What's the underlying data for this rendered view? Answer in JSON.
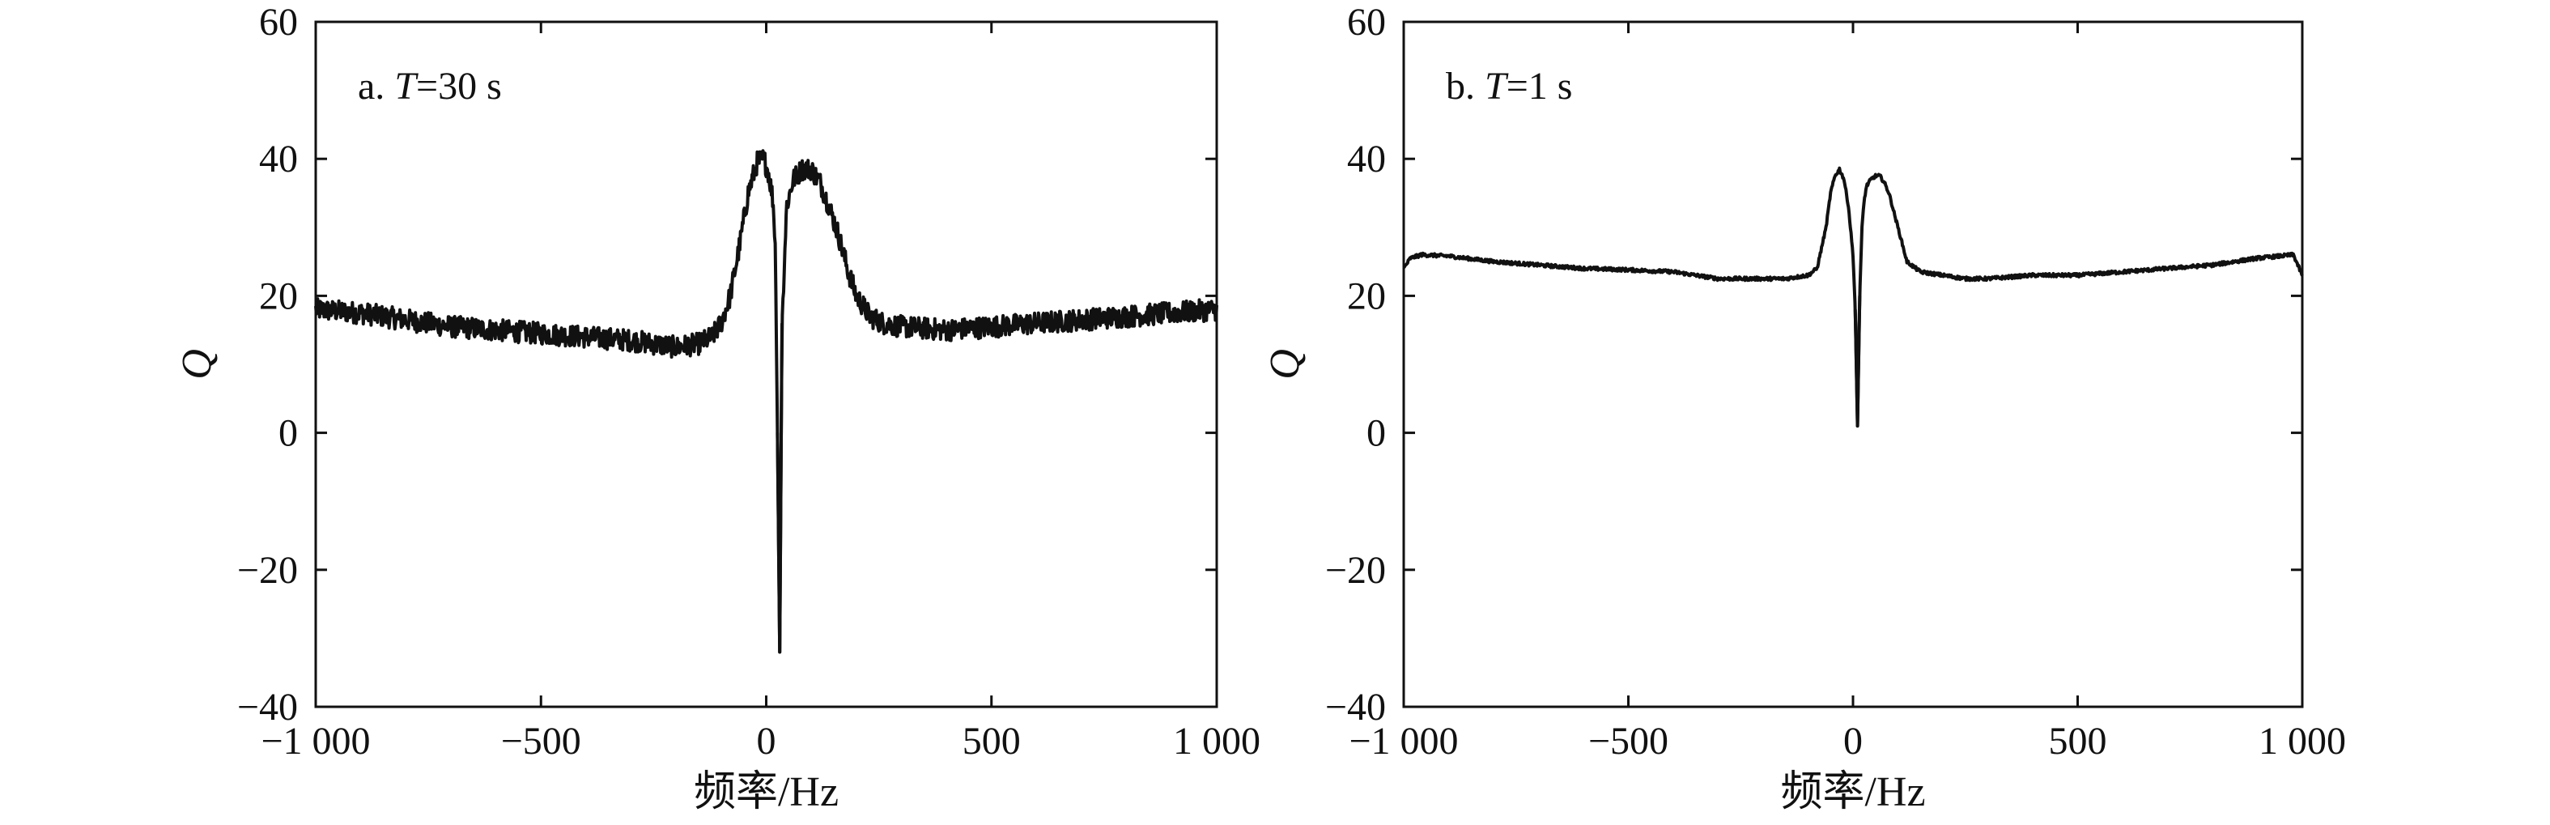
{
  "chart_data": [
    {
      "type": "line",
      "annotation": {
        "prefix": "a. ",
        "var": "T",
        "suffix": "=30 s"
      },
      "xlabel": "频率/Hz",
      "ylabel": "Q",
      "xlim": [
        -1000,
        1000
      ],
      "ylim": [
        -40,
        60
      ],
      "xticks": [
        -1000,
        -500,
        0,
        500,
        1000
      ],
      "xtick_labels": [
        "−1 000",
        "−500",
        "0",
        "500",
        "1 000"
      ],
      "yticks": [
        -40,
        -20,
        0,
        20,
        40,
        60
      ],
      "ytick_labels": [
        "−40",
        "−20",
        "0",
        "20",
        "40",
        "60"
      ],
      "grid": false,
      "noise": 1.6,
      "series": [
        {
          "x": [
            -1000,
            -900,
            -800,
            -700,
            -600,
            -500,
            -400,
            -300,
            -250,
            -200,
            -150,
            -120,
            -100,
            -80,
            -60,
            -40,
            -20,
            -5,
            5,
            15,
            20,
            25,
            30,
            35,
            45,
            60,
            80,
            100,
            120,
            140,
            160,
            180,
            200,
            230,
            260,
            300,
            400,
            500,
            600,
            700,
            800,
            900,
            1000
          ],
          "y": [
            18,
            17.5,
            16.5,
            15.5,
            15,
            14.5,
            14,
            13.5,
            13,
            12.5,
            13,
            14,
            16,
            20,
            27,
            35,
            39.5,
            40,
            38,
            34,
            28,
            0,
            -32,
            16,
            33,
            37,
            38.5,
            38.5,
            36.5,
            33,
            29,
            24,
            20,
            17,
            16,
            15.5,
            15,
            15.5,
            16,
            16.5,
            17,
            17.5,
            18
          ]
        }
      ]
    },
    {
      "type": "line",
      "annotation": {
        "prefix": "b. ",
        "var": "T",
        "suffix": "=1 s"
      },
      "xlabel": "频率/Hz",
      "ylabel": "Q",
      "xlim": [
        -1000,
        1000
      ],
      "ylim": [
        -40,
        60
      ],
      "xticks": [
        -1000,
        -500,
        0,
        500,
        1000
      ],
      "xtick_labels": [
        "−1 000",
        "−500",
        "0",
        "500",
        "1 000"
      ],
      "yticks": [
        -40,
        -20,
        0,
        20,
        40,
        60
      ],
      "ytick_labels": [
        "−40",
        "−20",
        "0",
        "20",
        "40",
        "60"
      ],
      "grid": false,
      "noise": 0.25,
      "series": [
        {
          "x": [
            -1000,
            -985,
            -960,
            -900,
            -800,
            -700,
            -600,
            -500,
            -400,
            -300,
            -250,
            -200,
            -150,
            -100,
            -80,
            -60,
            -50,
            -40,
            -30,
            -20,
            -10,
            0,
            5,
            10,
            15,
            20,
            25,
            30,
            40,
            50,
            60,
            70,
            80,
            100,
            120,
            150,
            200,
            250,
            300,
            400,
            500,
            600,
            700,
            800,
            900,
            950,
            980,
            1000
          ],
          "y": [
            24,
            25.5,
            26,
            25.8,
            25,
            24.5,
            24,
            23.8,
            23.5,
            22.5,
            22.5,
            22.5,
            22.5,
            23,
            24,
            30,
            35,
            37.5,
            38.5,
            37,
            33,
            26,
            18,
            1,
            20,
            30,
            34,
            36,
            37,
            37.5,
            37.5,
            36.5,
            35,
            30,
            25,
            23.5,
            23,
            22.5,
            22.5,
            23,
            23,
            23.5,
            24,
            24.5,
            25.5,
            25.8,
            26,
            23
          ]
        }
      ]
    }
  ]
}
